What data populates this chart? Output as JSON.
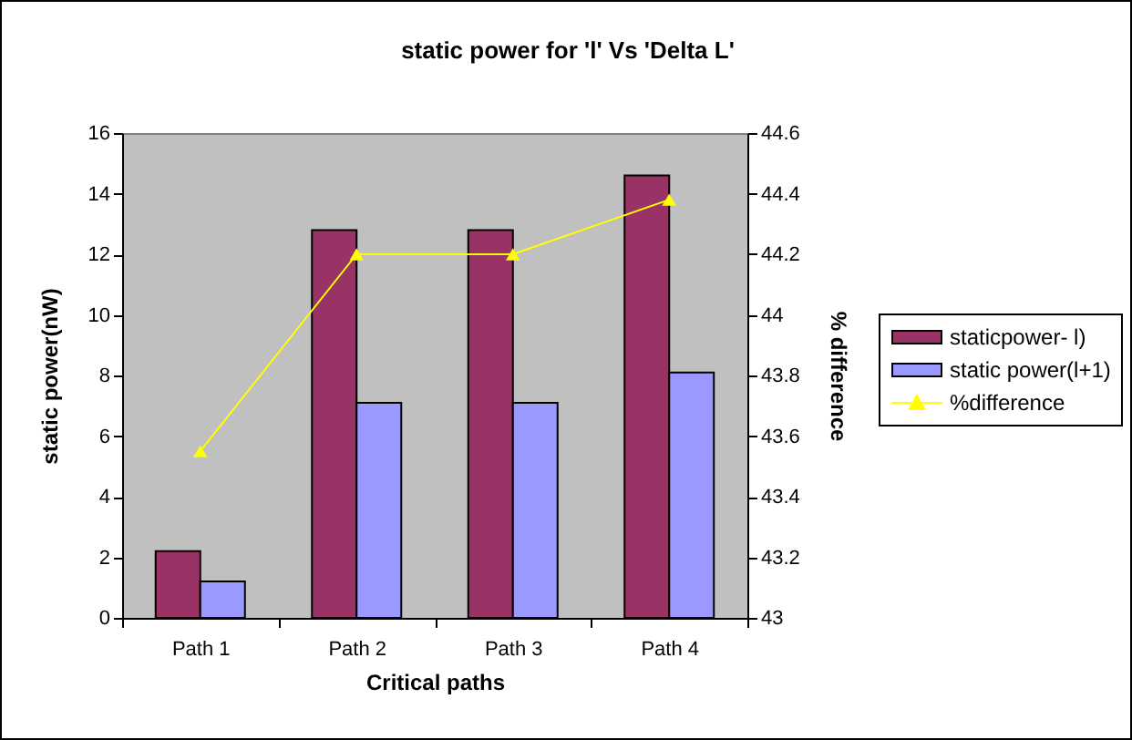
{
  "chart_data": {
    "type": "bar",
    "title": "static power for 'l' Vs 'Delta L'",
    "xlabel": "Critical paths",
    "ylabel": "static power(nW)",
    "y2label": "% difference",
    "categories": [
      "Path 1",
      "Path 2",
      "Path 3",
      "Path 4"
    ],
    "series": [
      {
        "name": "staticpower- l)",
        "color": "#993366",
        "values": [
          2.2,
          12.8,
          12.8,
          14.6
        ]
      },
      {
        "name": "static power(l+1)",
        "color": "#9999ff",
        "values": [
          1.2,
          7.1,
          7.1,
          8.1
        ]
      },
      {
        "name": "%difference",
        "type": "line",
        "axis": "y2",
        "color": "#ffff00",
        "marker": "triangle",
        "values": [
          43.55,
          44.2,
          44.2,
          44.38
        ]
      }
    ],
    "ylim": [
      0,
      16
    ],
    "yticks": [
      0,
      2,
      4,
      6,
      8,
      10,
      12,
      14,
      16
    ],
    "y2lim": [
      43,
      44.6
    ],
    "y2ticks": [
      43,
      43.2,
      43.4,
      43.6,
      43.8,
      44,
      44.2,
      44.4,
      44.6
    ],
    "legend": "right",
    "grid": false
  }
}
